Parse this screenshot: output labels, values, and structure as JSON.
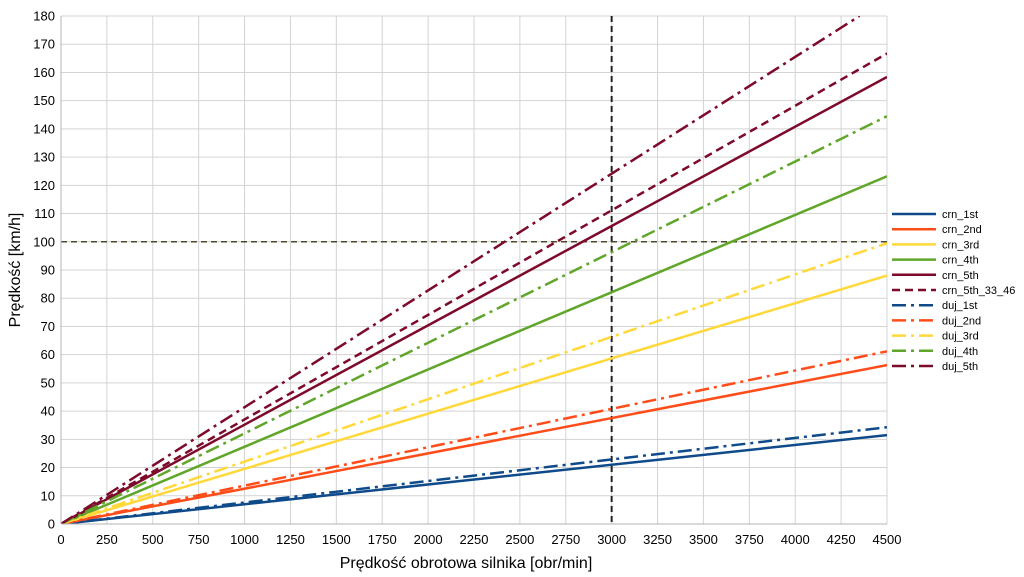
{
  "chart_data": {
    "type": "line",
    "title": "",
    "xlabel": "Prędkość obrotowa silnika [obr/min]",
    "ylabel": "Prędkość [km/h]",
    "xlim": [
      0,
      4500
    ],
    "ylim": [
      0,
      180
    ],
    "x_ticks": [
      "0",
      "250",
      "500",
      "750",
      "1000",
      "1250",
      "1500",
      "1750",
      "2000",
      "2250",
      "2500",
      "2750",
      "3000",
      "3250",
      "3500",
      "3750",
      "4000",
      "4250",
      "4500"
    ],
    "y_ticks": [
      "0",
      "10",
      "20",
      "30",
      "40",
      "50",
      "60",
      "70",
      "80",
      "90",
      "100",
      "110",
      "120",
      "130",
      "140",
      "150",
      "160",
      "170",
      "180"
    ],
    "grid": true,
    "legend_position": "right",
    "reference_lines": [
      {
        "orientation": "vertical",
        "value": 3000,
        "color": "#222222",
        "style": "dashed"
      },
      {
        "orientation": "horizontal",
        "value": 100,
        "color": "#4d4a2a",
        "style": "dashed"
      }
    ],
    "series": [
      {
        "name": "crn_1st",
        "color": "#0f4a8a",
        "style": "solid",
        "x": [
          0,
          4500
        ],
        "y": [
          0,
          31.5
        ]
      },
      {
        "name": "crn_2nd",
        "color": "#ff4d1a",
        "style": "solid",
        "x": [
          0,
          4500
        ],
        "y": [
          0,
          56.3
        ]
      },
      {
        "name": "crn_3rd",
        "color": "#ffd83a",
        "style": "solid",
        "x": [
          0,
          4500
        ],
        "y": [
          0,
          88
        ]
      },
      {
        "name": "crn_4th",
        "color": "#5fa62a",
        "style": "solid",
        "x": [
          0,
          4500
        ],
        "y": [
          0,
          123.2
        ]
      },
      {
        "name": "crn_5th",
        "color": "#7d0a2a",
        "style": "solid",
        "x": [
          0,
          4500
        ],
        "y": [
          0,
          158.4
        ]
      },
      {
        "name": "crn_5th_33_46",
        "color": "#7d0a2a",
        "style": "dashed",
        "x": [
          0,
          4500
        ],
        "y": [
          0,
          166.7
        ]
      },
      {
        "name": "duj_1st",
        "color": "#0f4a8a",
        "style": "dashdot",
        "x": [
          0,
          4500
        ],
        "y": [
          0,
          34.3
        ]
      },
      {
        "name": "duj_2nd",
        "color": "#ff4d1a",
        "style": "dashdot",
        "x": [
          0,
          4500
        ],
        "y": [
          0,
          61.2
        ]
      },
      {
        "name": "duj_3rd",
        "color": "#ffd83a",
        "style": "dashdot",
        "x": [
          0,
          4500
        ],
        "y": [
          0,
          99.5
        ]
      },
      {
        "name": "duj_4th",
        "color": "#5fa62a",
        "style": "dashdot",
        "x": [
          0,
          4500
        ],
        "y": [
          0,
          144.5
        ]
      },
      {
        "name": "duj_5th",
        "color": "#7d0a2a",
        "style": "dashdot",
        "x": [
          0,
          4350
        ],
        "y": [
          0,
          180
        ]
      }
    ]
  }
}
